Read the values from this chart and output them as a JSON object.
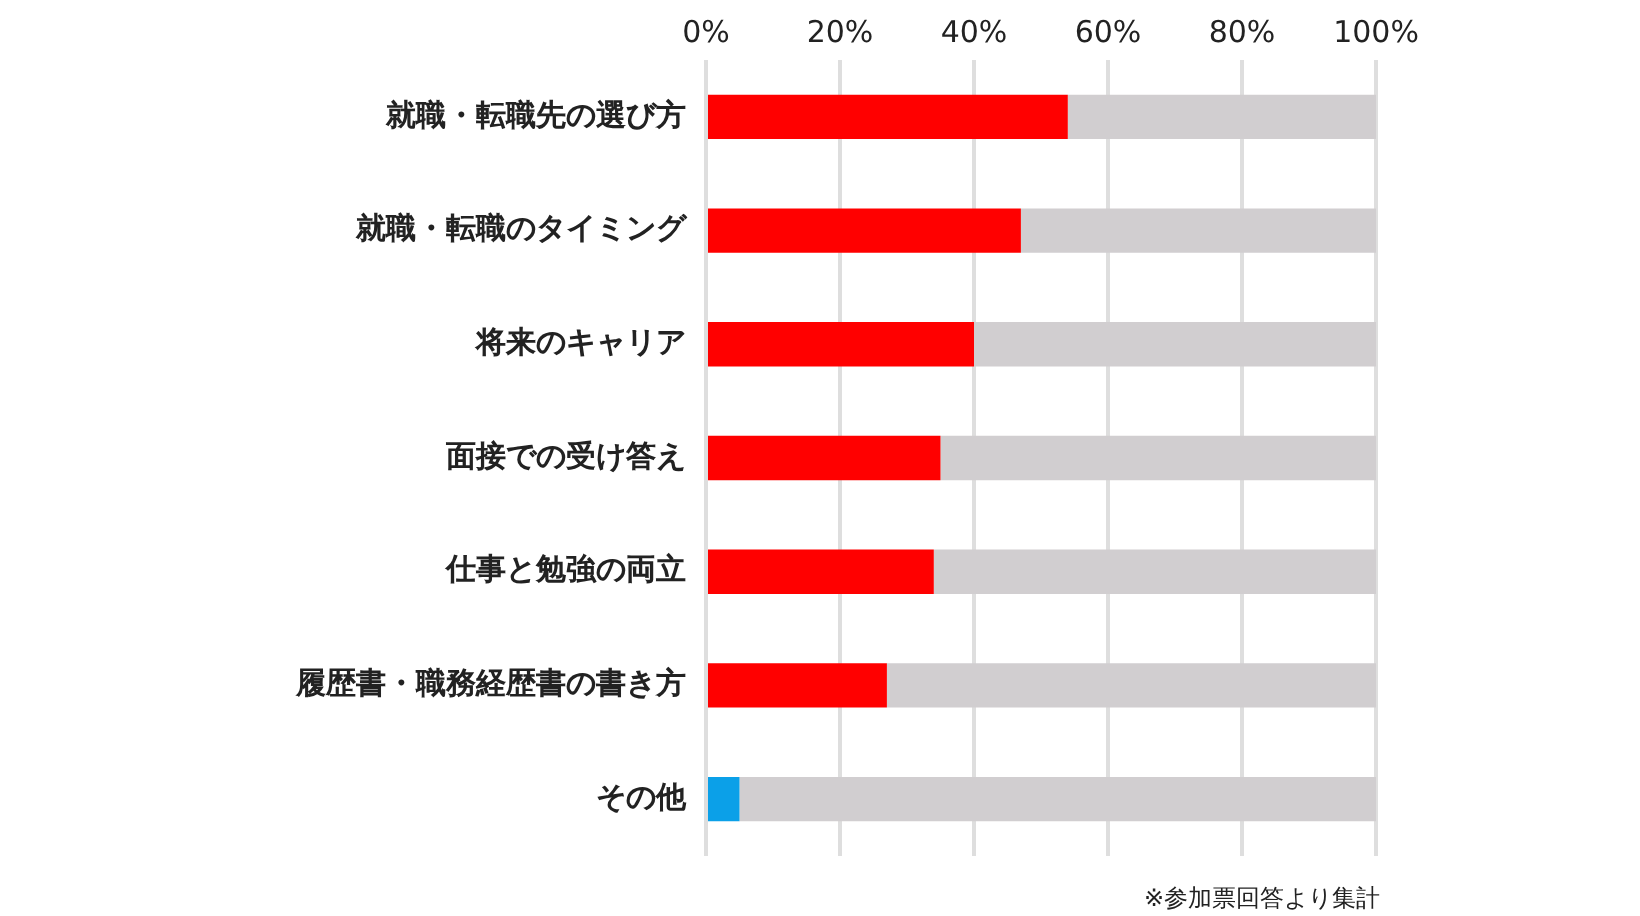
{
  "chart_data": {
    "type": "bar",
    "orientation": "horizontal",
    "stacked": true,
    "categories": [
      "就職・転職先の選び方",
      "就職・転職のタイミング",
      "将来のキャリア",
      "面接での受け答え",
      "仕事と勉強の両立",
      "履歴書・職務経歴書の書き方",
      "その他"
    ],
    "series": [
      {
        "colors": [
          "#ff0000",
          "#ff0000",
          "#ff0000",
          "#ff0000",
          "#ff0000",
          "#ff0000",
          "#0ba0e8"
        ],
        "values": [
          54,
          47,
          40,
          35,
          34,
          27,
          5
        ]
      },
      {
        "color": "#d1ced0",
        "values": [
          46,
          53,
          60,
          65,
          66,
          73,
          95
        ]
      }
    ],
    "xlim": [
      0,
      100
    ],
    "xticks": [
      {
        "value": 0,
        "label": "0%"
      },
      {
        "value": 20,
        "label": "20%"
      },
      {
        "value": 40,
        "label": "40%"
      },
      {
        "value": 60,
        "label": "60%"
      },
      {
        "value": 80,
        "label": "80%"
      },
      {
        "value": 100,
        "label": "100%"
      }
    ],
    "grid": "x",
    "legend": false,
    "annotations": [
      "※参加票回答より集計"
    ]
  }
}
